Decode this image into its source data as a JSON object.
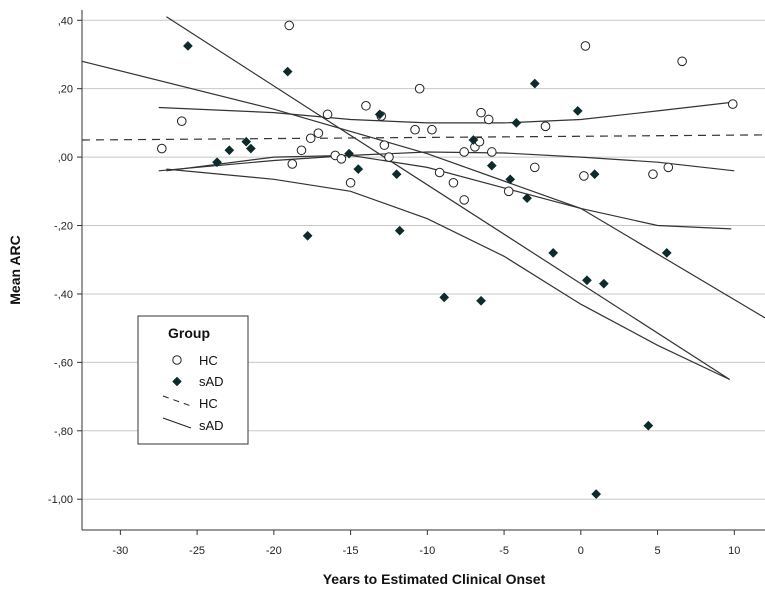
{
  "chart_data": {
    "type": "scatter",
    "title": "",
    "xlabel": "Years to Estimated Clinical Onset",
    "ylabel": "Mean ARC",
    "xlim": [
      -32.5,
      12
    ],
    "ylim": [
      -1.09,
      0.43
    ],
    "grid": "horizontal",
    "xticks": [
      -30,
      -25,
      -20,
      -15,
      -10,
      -5,
      0,
      5,
      10
    ],
    "xtick_labels": [
      "-30",
      "-25",
      "-20",
      "-15",
      "-10",
      "-5",
      "0",
      "5",
      "10"
    ],
    "yticks": [
      0.4,
      0.2,
      0.0,
      -0.2,
      -0.4,
      -0.6,
      -0.8,
      -1.0
    ],
    "ytick_labels": [
      ",40",
      ",20",
      ",00",
      "-,20",
      "-,40",
      "-,60",
      "-,80",
      "-1,00"
    ],
    "legend": {
      "title": "Group",
      "position": "bottom-left",
      "entries": [
        {
          "label": "HC",
          "kind": "open-circle"
        },
        {
          "label": "sAD",
          "kind": "filled-diamond"
        },
        {
          "label": "HC",
          "kind": "dashed-line"
        },
        {
          "label": "sAD",
          "kind": "solid-line"
        }
      ]
    },
    "series": [
      {
        "name": "HC",
        "marker": "open-circle",
        "points": [
          [
            -27.3,
            0.025
          ],
          [
            -26.0,
            0.105
          ],
          [
            -19.0,
            0.385
          ],
          [
            -18.8,
            -0.02
          ],
          [
            -18.2,
            0.02
          ],
          [
            -17.6,
            0.055
          ],
          [
            -17.1,
            0.07
          ],
          [
            -16.5,
            0.125
          ],
          [
            -16.0,
            0.005
          ],
          [
            -15.6,
            -0.005
          ],
          [
            -15.0,
            -0.075
          ],
          [
            -14.0,
            0.15
          ],
          [
            -13.0,
            0.12
          ],
          [
            -12.8,
            0.035
          ],
          [
            -12.5,
            0.0
          ],
          [
            -10.8,
            0.08
          ],
          [
            -10.5,
            0.2
          ],
          [
            -9.7,
            0.08
          ],
          [
            -9.2,
            -0.045
          ],
          [
            -8.3,
            -0.075
          ],
          [
            -7.6,
            0.015
          ],
          [
            -7.6,
            -0.125
          ],
          [
            -6.9,
            0.03
          ],
          [
            -6.6,
            0.045
          ],
          [
            -6.5,
            0.13
          ],
          [
            -6.0,
            0.11
          ],
          [
            -5.8,
            0.015
          ],
          [
            -4.7,
            -0.1
          ],
          [
            -3.0,
            -0.03
          ],
          [
            -2.3,
            0.09
          ],
          [
            0.2,
            -0.055
          ],
          [
            0.3,
            0.325
          ],
          [
            4.7,
            -0.05
          ],
          [
            5.7,
            -0.03
          ],
          [
            6.6,
            0.28
          ],
          [
            9.9,
            0.155
          ]
        ]
      },
      {
        "name": "sAD",
        "marker": "filled-diamond",
        "points": [
          [
            -25.6,
            0.325
          ],
          [
            -23.7,
            -0.015
          ],
          [
            -22.9,
            0.02
          ],
          [
            -21.8,
            0.045
          ],
          [
            -21.5,
            0.025
          ],
          [
            -19.1,
            0.25
          ],
          [
            -17.8,
            -0.23
          ],
          [
            -15.1,
            0.01
          ],
          [
            -14.5,
            -0.035
          ],
          [
            -13.1,
            0.125
          ],
          [
            -12.0,
            -0.05
          ],
          [
            -11.8,
            -0.215
          ],
          [
            -8.9,
            -0.41
          ],
          [
            -7.0,
            0.05
          ],
          [
            -6.5,
            -0.42
          ],
          [
            -5.8,
            -0.025
          ],
          [
            -4.6,
            -0.065
          ],
          [
            -4.2,
            0.1
          ],
          [
            -3.5,
            -0.12
          ],
          [
            -3.0,
            0.215
          ],
          [
            -1.8,
            -0.28
          ],
          [
            -0.2,
            0.135
          ],
          [
            0.4,
            -0.36
          ],
          [
            0.9,
            -0.05
          ],
          [
            1.0,
            -0.985
          ],
          [
            1.5,
            -0.37
          ],
          [
            4.4,
            -0.785
          ],
          [
            5.6,
            -0.28
          ]
        ]
      }
    ],
    "fit_lines": [
      {
        "name": "HC",
        "style": "dashed",
        "points": [
          [
            -32.5,
            0.05
          ],
          [
            12,
            0.065
          ]
        ]
      },
      {
        "name": "sAD",
        "style": "solid",
        "points": [
          [
            -27,
            0.41
          ],
          [
            9.7,
            -0.65
          ]
        ]
      },
      {
        "name": "sAD",
        "style": "solid",
        "points": [
          [
            -32.5,
            0.28
          ],
          [
            -20,
            0.14
          ],
          [
            -10,
            0.01
          ],
          [
            0,
            -0.15
          ],
          [
            12,
            -0.47
          ]
        ]
      },
      {
        "name": "sAD",
        "style": "solid",
        "points": [
          [
            -27,
            -0.035
          ],
          [
            -20,
            -0.065
          ],
          [
            -15,
            -0.1
          ],
          [
            -10,
            -0.18
          ],
          [
            -5,
            -0.29
          ],
          [
            0,
            -0.43
          ],
          [
            5,
            -0.55
          ],
          [
            9.7,
            -0.65
          ]
        ]
      },
      {
        "name": "HC",
        "style": "solid",
        "points": [
          [
            -27.5,
            0.145
          ],
          [
            -20,
            0.13
          ],
          [
            -15,
            0.11
          ],
          [
            -10,
            0.1
          ],
          [
            -5,
            0.1
          ],
          [
            0,
            0.11
          ],
          [
            5,
            0.135
          ],
          [
            9.8,
            0.16
          ]
        ]
      },
      {
        "name": "HC",
        "style": "solid",
        "points": [
          [
            -27.5,
            -0.04
          ],
          [
            -20,
            -0.01
          ],
          [
            -15,
            0.005
          ],
          [
            -10,
            0.015
          ],
          [
            -5,
            0.012
          ],
          [
            0,
            0.0
          ],
          [
            5,
            -0.015
          ],
          [
            10,
            -0.04
          ]
        ]
      },
      {
        "name": "sAD",
        "style": "solid",
        "points": [
          [
            -27,
            -0.04
          ],
          [
            -20,
            0.0
          ],
          [
            -15,
            0.005
          ],
          [
            -10,
            -0.03
          ],
          [
            -5,
            -0.09
          ],
          [
            0,
            -0.15
          ],
          [
            5,
            -0.2
          ],
          [
            9.8,
            -0.21
          ]
        ]
      }
    ]
  }
}
